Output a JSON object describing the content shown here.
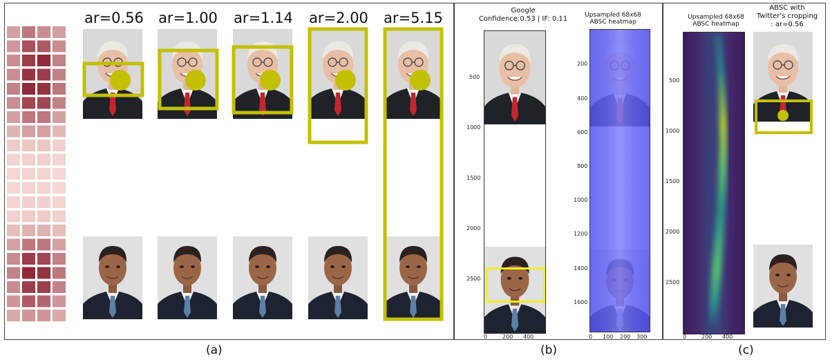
{
  "panel_a": {
    "ratio_labels": [
      "ar=0.56",
      "ar=1.00",
      "ar=1.14",
      "ar=2.00",
      "ar=5.15"
    ],
    "caption": "(a)"
  },
  "panel_b": {
    "title_line1": "Google",
    "title_line2": "Confidence:0.53 | IF: 0.11",
    "heatmap_title_line1": "Upsampled 68x68",
    "heatmap_title_line2": "ABSC heatmap",
    "left_y_ticks": [
      "500",
      "1000",
      "1500",
      "2000",
      "2500"
    ],
    "left_x_ticks": [
      "0",
      "200",
      "400"
    ],
    "right_y_ticks": [
      "200",
      "400",
      "600",
      "800",
      "1000",
      "1200",
      "1400",
      "1600"
    ],
    "right_x_ticks": [
      "0",
      "100",
      "200",
      "300"
    ],
    "caption": "(b)"
  },
  "panel_c": {
    "heatmap_title_line1": "Upsampled 68x68",
    "heatmap_title_line2": "ABSC heatmap",
    "crop_title_line1": "ABSC with",
    "crop_title_line2": "Twitter's cropping",
    "crop_title_line3": ": ar=0.56",
    "y_ticks": [
      "500",
      "1000",
      "1500",
      "2000",
      "2500"
    ],
    "x_ticks": [
      "0",
      "200",
      "400"
    ],
    "caption": "(c)"
  },
  "colors": {
    "box": "#c3c000",
    "heat_blue": "#3b3cf5",
    "yellow_box": "#f2ef1f"
  }
}
